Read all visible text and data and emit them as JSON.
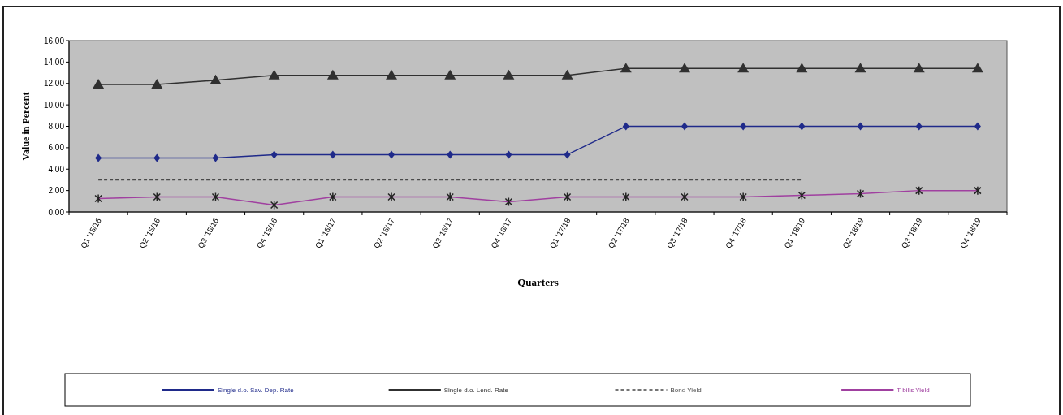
{
  "chart_data": {
    "type": "line",
    "xlabel": "Quarters",
    "ylabel": "Value in Percent",
    "categories": [
      "Q1 '15/16",
      "Q2 '15/16",
      "Q3 '15/16",
      "Q4 '15/16",
      "Q1 '16/17",
      "Q2 '16/17",
      "Q3 '16/17",
      "Q4 '16/17",
      "Q1 '17/18",
      "Q2 '17/18",
      "Q3 '17/18",
      "Q4 '17/18",
      "Q1 '18/19",
      "Q2 '18/19",
      "Q3 '18/19",
      "Q4 '18/19"
    ],
    "series": [
      {
        "name": "Single d.o. Sav. Dep. Rate",
        "color": "#1f2a8a",
        "marker": "diamond",
        "values": [
          5.05,
          5.05,
          5.05,
          5.35,
          5.35,
          5.35,
          5.35,
          5.35,
          5.35,
          8.0,
          8.0,
          8.0,
          8.0,
          8.0,
          8.0,
          8.0
        ]
      },
      {
        "name": "Single d.o. Lend. Rate",
        "color": "#303030",
        "marker": "triangle",
        "values": [
          11.9,
          11.9,
          12.3,
          12.75,
          12.75,
          12.75,
          12.75,
          12.75,
          12.75,
          13.4,
          13.4,
          13.4,
          13.4,
          13.4,
          13.4,
          13.4
        ]
      },
      {
        "name": "Bond Yield",
        "color": "#484848",
        "marker": "none",
        "line_style": "dashed",
        "values": [
          3.0,
          3.0,
          3.0,
          3.0,
          3.0,
          3.0,
          3.0,
          3.0,
          3.0,
          3.0,
          3.0,
          3.0,
          3.0,
          null,
          null,
          null
        ]
      },
      {
        "name": "T-bills Yield",
        "color": "#a040a0",
        "marker": "cross",
        "values": [
          1.25,
          1.4,
          1.4,
          0.65,
          1.4,
          1.4,
          1.4,
          0.95,
          1.4,
          1.4,
          1.4,
          1.4,
          1.55,
          1.7,
          2.0,
          2.0
        ]
      }
    ],
    "ylim": [
      0,
      16
    ],
    "yticks": [
      {
        "value": 0,
        "label": "0.00"
      },
      {
        "value": 2,
        "label": "2.00"
      },
      {
        "value": 4,
        "label": "4.00"
      },
      {
        "value": 6,
        "label": "6.00"
      },
      {
        "value": 8,
        "label": "8.00"
      },
      {
        "value": 10,
        "label": "10.00"
      },
      {
        "value": 12,
        "label": "12.00"
      },
      {
        "value": 14,
        "label": "14.00"
      },
      {
        "value": 16,
        "label": "16.00"
      }
    ],
    "legend": "bottom",
    "grid": false
  }
}
